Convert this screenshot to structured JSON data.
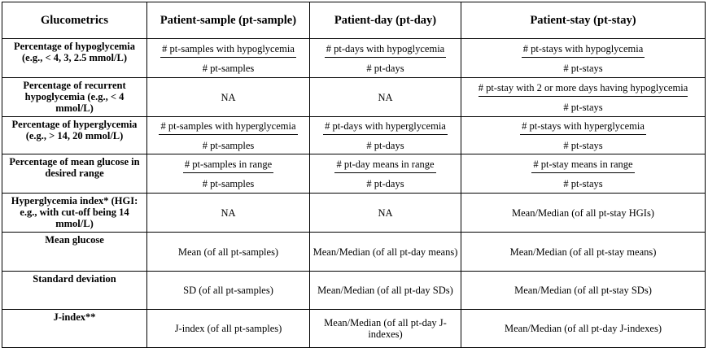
{
  "headers": [
    "Glucometrics",
    "Patient-sample (pt-sample)",
    "Patient-day (pt-day)",
    "Patient-stay (pt-stay)"
  ],
  "rows": [
    {
      "label": "Percentage of hypoglycemia (e.g., < 4, 3, 2.5 mmol/L)",
      "sample": {
        "num": "# pt-samples with hypoglycemia",
        "den": "# pt-samples"
      },
      "day": {
        "num": "# pt-days with hypoglycemia",
        "den": "# pt-days"
      },
      "stay": {
        "num": "# pt-stays with hypoglycemia",
        "den": "# pt-stays"
      }
    },
    {
      "label": "Percentage of recurrent hypoglycemia (e.g., < 4 mmol/L)",
      "sample": "NA",
      "day": "NA",
      "stay": {
        "num": "# pt-stay with 2 or more days having hypoglycemia",
        "den": "# pt-stays"
      }
    },
    {
      "label": "Percentage of hyperglycemia (e.g., > 14, 20 mmol/L)",
      "sample": {
        "num": "# pt-samples with hyperglycemia",
        "den": "# pt-samples"
      },
      "day": {
        "num": "# pt-days with hyperglycemia",
        "den": "# pt-days"
      },
      "stay": {
        "num": "# pt-stays with hyperglycemia",
        "den": "# pt-stays"
      }
    },
    {
      "label": "Percentage of mean glucose in desired range",
      "sample": {
        "num": "# pt-samples in range",
        "den": "# pt-samples"
      },
      "day": {
        "num": "# pt-day means in range",
        "den": "# pt-days"
      },
      "stay": {
        "num": "# pt-stay means in range",
        "den": "# pt-stays"
      }
    },
    {
      "label": "Hyperglycemia index* (HGI: e.g., with cut-off being 14 mmol/L)",
      "sample": "NA",
      "day": "NA",
      "stay": "Mean/Median (of all pt-stay HGIs)"
    },
    {
      "label": "Mean glucose",
      "sample": "Mean (of all pt-samples)",
      "day": "Mean/Median (of all pt-day means)",
      "stay": "Mean/Median (of all pt-stay means)"
    },
    {
      "label": "Standard deviation",
      "sample": "SD (of all pt-samples)",
      "day": "Mean/Median (of all pt-day SDs)",
      "stay": "Mean/Median (of all pt-stay SDs)"
    },
    {
      "label": "J-index**",
      "sample": "J-index (of all pt-samples)",
      "day": "Mean/Median (of all pt-day J-indexes)",
      "stay": "Mean/Median (of all pt-day J-indexes)"
    }
  ]
}
